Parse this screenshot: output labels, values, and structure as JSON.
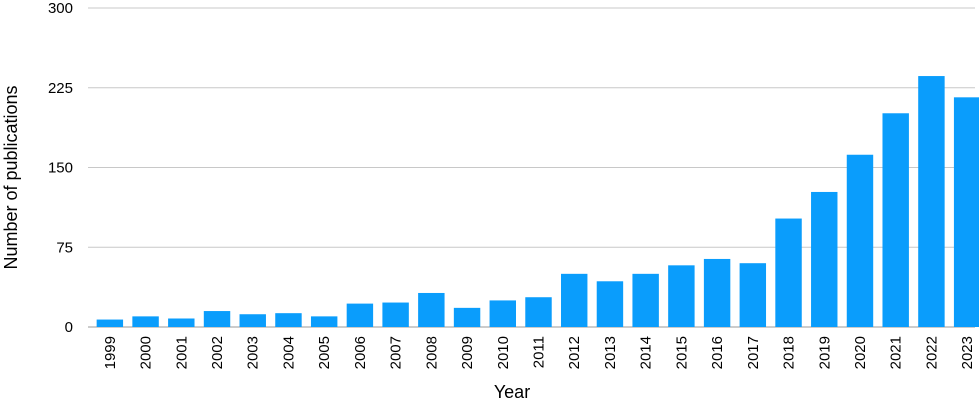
{
  "chart_data": {
    "type": "bar",
    "title": "",
    "xlabel": "Year",
    "ylabel": "Number of publications",
    "ylim": [
      0,
      300
    ],
    "yticks": [
      "0",
      "75",
      "150",
      "225",
      "300"
    ],
    "grid": true,
    "legend": "none",
    "bar_color": "#0a9dfc",
    "categories": [
      "1999",
      "2000",
      "2001",
      "2002",
      "2003",
      "2004",
      "2005",
      "2006",
      "2007",
      "2008",
      "2009",
      "2010",
      "2011",
      "2012",
      "2013",
      "2014",
      "2015",
      "2016",
      "2017",
      "2018",
      "2019",
      "2020",
      "2021",
      "2022",
      "2023"
    ],
    "values": [
      7,
      10,
      8,
      15,
      12,
      13,
      10,
      22,
      23,
      32,
      18,
      25,
      28,
      50,
      43,
      50,
      58,
      64,
      60,
      102,
      127,
      162,
      201,
      236,
      216
    ]
  }
}
